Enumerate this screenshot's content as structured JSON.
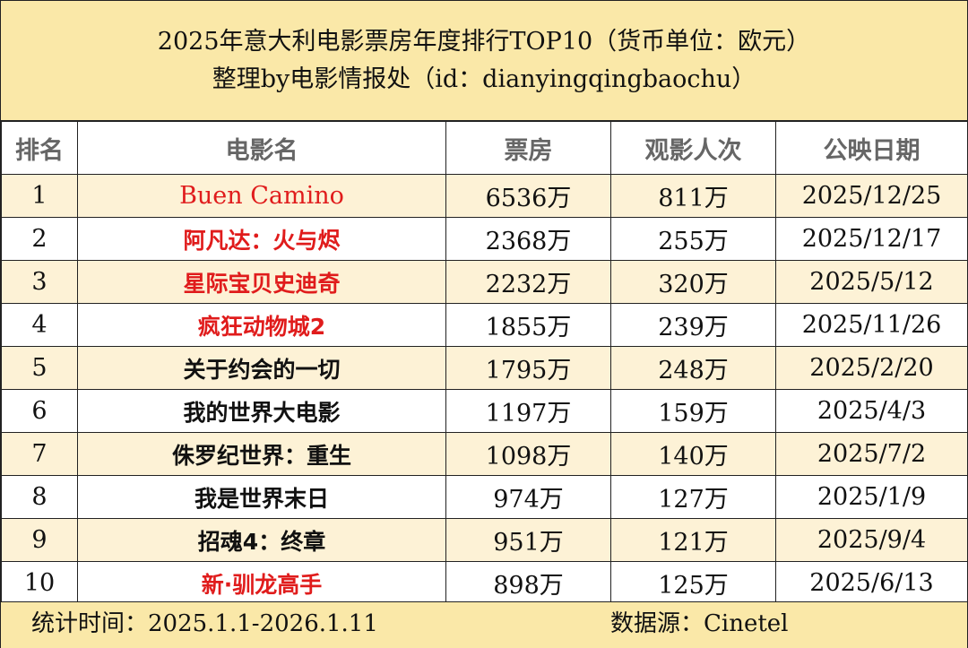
{
  "header": {
    "title_line1": "2025年意大利电影票房年度排行TOP10（货币单位：欧元）",
    "title_line2": "整理by电影情报处（id：dianyingqingbaochu）"
  },
  "columns": [
    "排名",
    "电影名",
    "票房",
    "观影人次",
    "公映日期"
  ],
  "rows": [
    {
      "rank": "1",
      "title": "Buen Camino",
      "box_office": "6536万",
      "admissions": "811万",
      "release_date": "2025/12/25",
      "highlight": true,
      "latin": true
    },
    {
      "rank": "2",
      "title": "阿凡达：火与烬",
      "box_office": "2368万",
      "admissions": "255万",
      "release_date": "2025/12/17",
      "highlight": true
    },
    {
      "rank": "3",
      "title": "星际宝贝史迪奇",
      "box_office": "2232万",
      "admissions": "320万",
      "release_date": "2025/5/12",
      "highlight": true
    },
    {
      "rank": "4",
      "title": "疯狂动物城2",
      "box_office": "1855万",
      "admissions": "239万",
      "release_date": "2025/11/26",
      "highlight": true
    },
    {
      "rank": "5",
      "title": "关于约会的一切",
      "box_office": "1795万",
      "admissions": "248万",
      "release_date": "2025/2/20",
      "highlight": false
    },
    {
      "rank": "6",
      "title": "我的世界大电影",
      "box_office": "1197万",
      "admissions": "159万",
      "release_date": "2025/4/3",
      "highlight": false
    },
    {
      "rank": "7",
      "title": "侏罗纪世界：重生",
      "box_office": "1098万",
      "admissions": "140万",
      "release_date": "2025/7/2",
      "highlight": false
    },
    {
      "rank": "8",
      "title": "我是世界末日",
      "box_office": "974万",
      "admissions": "127万",
      "release_date": "2025/1/9",
      "highlight": false
    },
    {
      "rank": "9",
      "title": "招魂4：终章",
      "box_office": "951万",
      "admissions": "121万",
      "release_date": "2025/9/4",
      "highlight": false
    },
    {
      "rank": "10",
      "title": "新·驯龙高手",
      "box_office": "898万",
      "admissions": "125万",
      "release_date": "2025/6/13",
      "highlight": true
    }
  ],
  "footer": {
    "period": "统计时间：2025.1.1-2026.1.11",
    "source": "数据源：Cinetel"
  },
  "colors": {
    "header_bg": "#fae8a8",
    "odd_row_bg": "#fdf2d6",
    "highlight_text": "#e01c1c",
    "column_header_text": "#666666"
  }
}
